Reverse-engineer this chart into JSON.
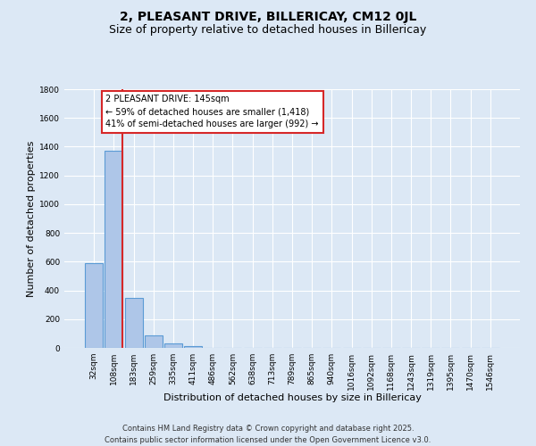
{
  "title": "2, PLEASANT DRIVE, BILLERICAY, CM12 0JL",
  "subtitle": "Size of property relative to detached houses in Billericay",
  "xlabel": "Distribution of detached houses by size in Billericay",
  "ylabel": "Number of detached properties",
  "bar_labels": [
    "32sqm",
    "108sqm",
    "183sqm",
    "259sqm",
    "335sqm",
    "411sqm",
    "486sqm",
    "562sqm",
    "638sqm",
    "713sqm",
    "789sqm",
    "865sqm",
    "940sqm",
    "1016sqm",
    "1092sqm",
    "1168sqm",
    "1243sqm",
    "1319sqm",
    "1395sqm",
    "1470sqm",
    "1546sqm"
  ],
  "bar_values": [
    590,
    1370,
    350,
    85,
    28,
    13,
    0,
    0,
    0,
    0,
    0,
    0,
    0,
    0,
    0,
    0,
    0,
    0,
    0,
    0,
    0
  ],
  "bar_color": "#aec6e8",
  "bar_edge_color": "#5b9bd5",
  "ylim": [
    0,
    1800
  ],
  "yticks": [
    0,
    200,
    400,
    600,
    800,
    1000,
    1200,
    1400,
    1600,
    1800
  ],
  "vline_color": "#d62728",
  "annotation_text": "2 PLEASANT DRIVE: 145sqm\n← 59% of detached houses are smaller (1,418)\n41% of semi-detached houses are larger (992) →",
  "annotation_box_color": "#ffffff",
  "annotation_border_color": "#d62728",
  "bg_color": "#dce8f5",
  "grid_color": "#ffffff",
  "footer_line1": "Contains HM Land Registry data © Crown copyright and database right 2025.",
  "footer_line2": "Contains public sector information licensed under the Open Government Licence v3.0.",
  "title_fontsize": 10,
  "subtitle_fontsize": 9,
  "xlabel_fontsize": 8,
  "ylabel_fontsize": 8,
  "tick_fontsize": 6.5,
  "annotation_fontsize": 7,
  "footer_fontsize": 6
}
